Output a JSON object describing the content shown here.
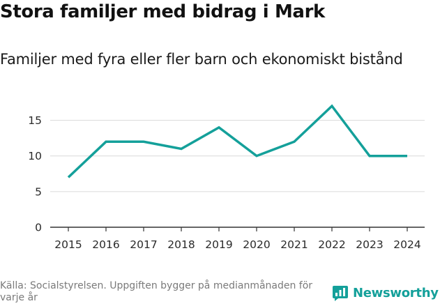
{
  "header": {
    "title": "Stora familjer med bidrag i Mark",
    "subtitle": "Familjer med fyra eller fler barn och ekonomiskt bistånd"
  },
  "footer": {
    "source": "Källa: Socialstyrelsen. Uppgiften bygger på medianmånaden för varje år",
    "brand": "Newsworthy"
  },
  "colors": {
    "line": "#14a09a",
    "grid": "#d9d9d9",
    "axis": "#333333",
    "brand": "#14a09a"
  },
  "chart_data": {
    "type": "line",
    "title": "Stora familjer med bidrag i Mark",
    "subtitle": "Familjer med fyra eller fler barn och ekonomiskt bistånd",
    "xlabel": "",
    "ylabel": "",
    "x": [
      "2015",
      "2016",
      "2017",
      "2018",
      "2019",
      "2020",
      "2021",
      "2022",
      "2023",
      "2024"
    ],
    "series": [
      {
        "name": "Familjer",
        "values": [
          7,
          12,
          12,
          11,
          14,
          10,
          12,
          17,
          10,
          10
        ]
      }
    ],
    "ylim": [
      0,
      17.5
    ],
    "yticks": [
      0,
      5,
      10,
      15
    ],
    "grid": true,
    "legend": "none"
  }
}
